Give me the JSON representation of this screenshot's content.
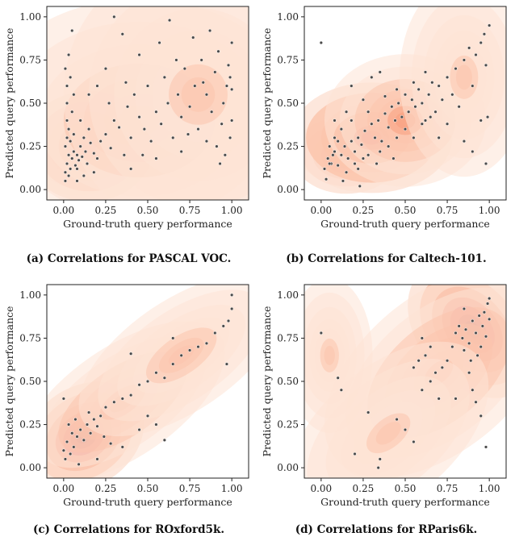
{
  "colors": {
    "density_stops": [
      "#fde3d6",
      "#fbc5ad",
      "#f89f7d",
      "#f26d4f",
      "#de3a2d",
      "#b9161d",
      "#8a0a14"
    ],
    "marker": "#4a4a4a",
    "marker_edge": "#ffffff"
  },
  "chart_data": [
    {
      "type": "scatter",
      "id": "a",
      "caption": "(a) Correlations for PASCAL VOC.",
      "xlabel": "Ground-truth query performance",
      "ylabel": "Predicted query performance",
      "xticks": [
        "0.00",
        "0.25",
        "0.50",
        "0.75",
        "1.00"
      ],
      "yticks": [
        "0.00",
        "0.25",
        "0.50",
        "0.75",
        "1.00"
      ],
      "xlim": [
        -0.1,
        1.1
      ],
      "ylim": [
        -0.06,
        1.06
      ],
      "density": [
        {
          "cx": 0.08,
          "cy": 0.22,
          "sx": 0.1,
          "sy": 0.08,
          "a": 1.0
        },
        {
          "cx": 0.15,
          "cy": 0.25,
          "sx": 0.12,
          "sy": 0.1,
          "a": 0.55
        },
        {
          "cx": 0.45,
          "cy": 0.4,
          "sx": 0.3,
          "sy": 0.22,
          "a": 0.18
        },
        {
          "cx": 0.8,
          "cy": 0.55,
          "sx": 0.25,
          "sy": 0.25,
          "a": 0.12
        }
      ],
      "points": [
        [
          0.01,
          0.1
        ],
        [
          0.02,
          0.15
        ],
        [
          0.03,
          0.2
        ],
        [
          0.01,
          0.25
        ],
        [
          0.02,
          0.3
        ],
        [
          0.04,
          0.12
        ],
        [
          0.05,
          0.18
        ],
        [
          0.03,
          0.35
        ],
        [
          0.02,
          0.4
        ],
        [
          0.01,
          0.05
        ],
        [
          0.06,
          0.22
        ],
        [
          0.07,
          0.14
        ],
        [
          0.04,
          0.28
        ],
        [
          0.08,
          0.2
        ],
        [
          0.05,
          0.45
        ],
        [
          0.02,
          0.5
        ],
        [
          0.09,
          0.17
        ],
        [
          0.1,
          0.25
        ],
        [
          0.11,
          0.19
        ],
        [
          0.12,
          0.3
        ],
        [
          0.13,
          0.22
        ],
        [
          0.14,
          0.15
        ],
        [
          0.15,
          0.35
        ],
        [
          0.16,
          0.27
        ],
        [
          0.18,
          0.21
        ],
        [
          0.2,
          0.18
        ],
        [
          0.03,
          0.08
        ],
        [
          0.06,
          0.32
        ],
        [
          0.08,
          0.12
        ],
        [
          0.1,
          0.4
        ],
        [
          0.02,
          0.6
        ],
        [
          0.04,
          0.65
        ],
        [
          0.06,
          0.55
        ],
        [
          0.01,
          0.7
        ],
        [
          0.03,
          0.78
        ],
        [
          0.05,
          0.92
        ],
        [
          0.22,
          0.28
        ],
        [
          0.25,
          0.32
        ],
        [
          0.28,
          0.24
        ],
        [
          0.3,
          0.4
        ],
        [
          0.33,
          0.36
        ],
        [
          0.36,
          0.2
        ],
        [
          0.38,
          0.48
        ],
        [
          0.4,
          0.3
        ],
        [
          0.42,
          0.55
        ],
        [
          0.45,
          0.42
        ],
        [
          0.48,
          0.35
        ],
        [
          0.5,
          0.6
        ],
        [
          0.52,
          0.28
        ],
        [
          0.55,
          0.45
        ],
        [
          0.58,
          0.38
        ],
        [
          0.6,
          0.65
        ],
        [
          0.62,
          0.5
        ],
        [
          0.65,
          0.3
        ],
        [
          0.68,
          0.55
        ],
        [
          0.7,
          0.42
        ],
        [
          0.72,
          0.7
        ],
        [
          0.75,
          0.48
        ],
        [
          0.78,
          0.6
        ],
        [
          0.8,
          0.35
        ],
        [
          0.82,
          0.75
        ],
        [
          0.85,
          0.55
        ],
        [
          0.88,
          0.45
        ],
        [
          0.9,
          0.68
        ],
        [
          0.92,
          0.8
        ],
        [
          0.95,
          0.5
        ],
        [
          0.97,
          0.6
        ],
        [
          0.98,
          0.72
        ],
        [
          1.0,
          0.85
        ],
        [
          1.0,
          0.4
        ],
        [
          0.99,
          0.3
        ],
        [
          0.96,
          0.2
        ],
        [
          0.93,
          0.15
        ],
        [
          0.87,
          0.92
        ],
        [
          0.77,
          0.88
        ],
        [
          0.57,
          0.85
        ],
        [
          0.3,
          1.0
        ],
        [
          0.35,
          0.9
        ],
        [
          0.63,
          0.98
        ],
        [
          0.2,
          0.6
        ],
        [
          0.15,
          0.55
        ],
        [
          0.25,
          0.7
        ],
        [
          0.45,
          0.78
        ],
        [
          0.55,
          0.18
        ],
        [
          0.7,
          0.22
        ],
        [
          0.85,
          0.28
        ],
        [
          0.4,
          0.12
        ],
        [
          0.12,
          0.08
        ],
        [
          0.08,
          0.05
        ],
        [
          0.18,
          0.1
        ],
        [
          0.27,
          0.5
        ],
        [
          0.37,
          0.62
        ],
        [
          0.47,
          0.2
        ],
        [
          0.67,
          0.75
        ],
        [
          0.74,
          0.32
        ],
        [
          0.94,
          0.38
        ],
        [
          1.0,
          0.58
        ],
        [
          0.99,
          0.65
        ],
        [
          0.91,
          0.25
        ],
        [
          0.83,
          0.62
        ]
      ]
    },
    {
      "type": "scatter",
      "id": "b",
      "caption": "(b) Correlations for Caltech-101.",
      "xlabel": "Ground-truth query performance",
      "ylabel": "Predicted query performance",
      "xticks": [
        "0.00",
        "0.25",
        "0.50",
        "0.75",
        "1.00"
      ],
      "yticks": [
        "0.00",
        "0.25",
        "0.50",
        "0.75",
        "1.00"
      ],
      "xlim": [
        -0.1,
        1.1
      ],
      "ylim": [
        -0.06,
        1.06
      ],
      "density": [
        {
          "cx": 0.15,
          "cy": 0.2,
          "sx": 0.1,
          "sy": 0.07,
          "a": 1.0
        },
        {
          "cx": 0.3,
          "cy": 0.3,
          "sx": 0.15,
          "sy": 0.1,
          "a": 0.6
        },
        {
          "cx": 0.5,
          "cy": 0.4,
          "sx": 0.15,
          "sy": 0.12,
          "a": 0.3
        },
        {
          "cx": 0.85,
          "cy": 0.65,
          "sx": 0.12,
          "sy": 0.18,
          "a": 0.12
        }
      ],
      "points": [
        [
          0.02,
          0.12
        ],
        [
          0.04,
          0.18
        ],
        [
          0.06,
          0.15
        ],
        [
          0.08,
          0.22
        ],
        [
          0.1,
          0.14
        ],
        [
          0.12,
          0.2
        ],
        [
          0.14,
          0.25
        ],
        [
          0.16,
          0.18
        ],
        [
          0.18,
          0.28
        ],
        [
          0.2,
          0.22
        ],
        [
          0.22,
          0.3
        ],
        [
          0.24,
          0.26
        ],
        [
          0.26,
          0.34
        ],
        [
          0.28,
          0.2
        ],
        [
          0.3,
          0.38
        ],
        [
          0.32,
          0.3
        ],
        [
          0.34,
          0.4
        ],
        [
          0.36,
          0.28
        ],
        [
          0.38,
          0.44
        ],
        [
          0.4,
          0.36
        ],
        [
          0.42,
          0.48
        ],
        [
          0.44,
          0.4
        ],
        [
          0.46,
          0.5
        ],
        [
          0.48,
          0.42
        ],
        [
          0.5,
          0.55
        ],
        [
          0.52,
          0.45
        ],
        [
          0.54,
          0.52
        ],
        [
          0.56,
          0.48
        ],
        [
          0.58,
          0.58
        ],
        [
          0.6,
          0.5
        ],
        [
          0.62,
          0.4
        ],
        [
          0.64,
          0.55
        ],
        [
          0.66,
          0.62
        ],
        [
          0.68,
          0.45
        ],
        [
          0.7,
          0.6
        ],
        [
          0.72,
          0.52
        ],
        [
          0.1,
          0.28
        ],
        [
          0.15,
          0.1
        ],
        [
          0.2,
          0.15
        ],
        [
          0.25,
          0.18
        ],
        [
          0.05,
          0.25
        ],
        [
          0.08,
          0.3
        ],
        [
          0.12,
          0.35
        ],
        [
          0.18,
          0.4
        ],
        [
          0.22,
          0.12
        ],
        [
          0.28,
          0.45
        ],
        [
          0.35,
          0.22
        ],
        [
          0.4,
          0.25
        ],
        [
          0.45,
          0.3
        ],
        [
          0.5,
          0.35
        ],
        [
          0.55,
          0.3
        ],
        [
          0.6,
          0.38
        ],
        [
          0.65,
          0.42
        ],
        [
          0.03,
          0.06
        ],
        [
          0.13,
          0.05
        ],
        [
          0.23,
          0.02
        ],
        [
          0.33,
          0.15
        ],
        [
          0.43,
          0.18
        ],
        [
          0.75,
          0.65
        ],
        [
          0.8,
          0.7
        ],
        [
          0.85,
          0.75
        ],
        [
          0.88,
          0.82
        ],
        [
          0.92,
          0.78
        ],
        [
          0.95,
          0.85
        ],
        [
          0.97,
          0.9
        ],
        [
          1.0,
          0.95
        ],
        [
          0.98,
          0.72
        ],
        [
          0.9,
          0.6
        ],
        [
          0.95,
          0.4
        ],
        [
          0.99,
          0.42
        ],
        [
          0.98,
          0.15
        ],
        [
          0.9,
          0.22
        ],
        [
          0.85,
          0.28
        ],
        [
          0.0,
          0.85
        ],
        [
          0.18,
          0.6
        ],
        [
          0.3,
          0.65
        ],
        [
          0.35,
          0.68
        ],
        [
          0.45,
          0.58
        ],
        [
          0.7,
          0.3
        ],
        [
          0.75,
          0.38
        ],
        [
          0.25,
          0.52
        ],
        [
          0.38,
          0.54
        ],
        [
          0.15,
          0.45
        ],
        [
          0.08,
          0.4
        ],
        [
          0.55,
          0.62
        ],
        [
          0.62,
          0.68
        ],
        [
          0.78,
          0.55
        ],
        [
          0.82,
          0.48
        ],
        [
          0.05,
          0.15
        ],
        [
          0.07,
          0.2
        ]
      ]
    },
    {
      "type": "scatter",
      "id": "c",
      "caption": "(c) Correlations for ROxford5k.",
      "xlabel": "Ground-truth query performance",
      "ylabel": "Predicted query performance",
      "xticks": [
        "0.00",
        "0.25",
        "0.50",
        "0.75",
        "1.00"
      ],
      "yticks": [
        "0.00",
        "0.25",
        "0.50",
        "0.75",
        "1.00"
      ],
      "xlim": [
        -0.1,
        1.1
      ],
      "ylim": [
        -0.06,
        1.06
      ],
      "density": [
        {
          "cx": 0.12,
          "cy": 0.18,
          "sx": 0.12,
          "sy": 0.09,
          "a": 1.0,
          "rot": -0.6
        },
        {
          "cx": 0.35,
          "cy": 0.38,
          "sx": 0.22,
          "sy": 0.1,
          "a": 0.35,
          "rot": -0.6
        },
        {
          "cx": 0.7,
          "cy": 0.65,
          "sx": 0.22,
          "sy": 0.1,
          "a": 0.15,
          "rot": -0.6
        }
      ],
      "points": [
        [
          0.0,
          0.1
        ],
        [
          0.02,
          0.15
        ],
        [
          0.04,
          0.08
        ],
        [
          0.05,
          0.2
        ],
        [
          0.06,
          0.12
        ],
        [
          0.08,
          0.18
        ],
        [
          0.1,
          0.22
        ],
        [
          0.12,
          0.16
        ],
        [
          0.14,
          0.25
        ],
        [
          0.16,
          0.2
        ],
        [
          0.18,
          0.28
        ],
        [
          0.2,
          0.24
        ],
        [
          0.22,
          0.3
        ],
        [
          0.24,
          0.18
        ],
        [
          0.01,
          0.05
        ],
        [
          0.03,
          0.25
        ],
        [
          0.07,
          0.28
        ],
        [
          0.09,
          0.02
        ],
        [
          0.15,
          0.32
        ],
        [
          0.25,
          0.35
        ],
        [
          0.3,
          0.38
        ],
        [
          0.35,
          0.4
        ],
        [
          0.4,
          0.42
        ],
        [
          0.45,
          0.48
        ],
        [
          0.5,
          0.5
        ],
        [
          0.55,
          0.55
        ],
        [
          0.6,
          0.52
        ],
        [
          0.65,
          0.6
        ],
        [
          0.7,
          0.65
        ],
        [
          0.75,
          0.68
        ],
        [
          0.8,
          0.7
        ],
        [
          0.85,
          0.72
        ],
        [
          0.9,
          0.78
        ],
        [
          0.95,
          0.82
        ],
        [
          0.97,
          0.6
        ],
        [
          1.0,
          0.92
        ],
        [
          1.0,
          1.0
        ],
        [
          0.98,
          0.85
        ],
        [
          0.5,
          0.3
        ],
        [
          0.55,
          0.25
        ],
        [
          0.6,
          0.16
        ],
        [
          0.45,
          0.22
        ],
        [
          0.4,
          0.66
        ],
        [
          0.65,
          0.75
        ],
        [
          0.35,
          0.12
        ],
        [
          0.28,
          0.14
        ],
        [
          0.2,
          0.05
        ],
        [
          0.0,
          0.4
        ]
      ]
    },
    {
      "type": "scatter",
      "id": "d",
      "caption": "(d) Correlations for RParis6k.",
      "xlabel": "Ground-truth query performance",
      "ylabel": "Predicted query performance",
      "xticks": [
        "0.00",
        "0.25",
        "0.50",
        "0.75",
        "1.00"
      ],
      "yticks": [
        "0.00",
        "0.25",
        "0.50",
        "0.75",
        "1.00"
      ],
      "xlim": [
        -0.1,
        1.1
      ],
      "ylim": [
        -0.06,
        1.06
      ],
      "density": [
        {
          "cx": 0.9,
          "cy": 0.8,
          "sx": 0.1,
          "sy": 0.14,
          "a": 1.0,
          "rot": -0.7
        },
        {
          "cx": 0.7,
          "cy": 0.55,
          "sx": 0.25,
          "sy": 0.14,
          "a": 0.25,
          "rot": -0.7
        },
        {
          "cx": 0.4,
          "cy": 0.2,
          "sx": 0.22,
          "sy": 0.12,
          "a": 0.12,
          "rot": -0.7
        },
        {
          "cx": 0.05,
          "cy": 0.65,
          "sx": 0.08,
          "sy": 0.14,
          "a": 0.1
        }
      ],
      "points": [
        [
          0.8,
          0.78
        ],
        [
          0.82,
          0.82
        ],
        [
          0.84,
          0.75
        ],
        [
          0.86,
          0.8
        ],
        [
          0.88,
          0.72
        ],
        [
          0.9,
          0.85
        ],
        [
          0.92,
          0.78
        ],
        [
          0.94,
          0.88
        ],
        [
          0.95,
          0.7
        ],
        [
          0.96,
          0.82
        ],
        [
          0.97,
          0.9
        ],
        [
          0.98,
          0.76
        ],
        [
          0.99,
          0.95
        ],
        [
          1.0,
          0.86
        ],
        [
          1.0,
          0.98
        ],
        [
          0.93,
          0.65
        ],
        [
          0.89,
          0.62
        ],
        [
          0.85,
          0.68
        ],
        [
          0.78,
          0.7
        ],
        [
          0.75,
          0.62
        ],
        [
          0.72,
          0.58
        ],
        [
          0.68,
          0.55
        ],
        [
          0.65,
          0.5
        ],
        [
          0.6,
          0.45
        ],
        [
          0.7,
          0.4
        ],
        [
          0.8,
          0.4
        ],
        [
          0.9,
          0.45
        ],
        [
          0.55,
          0.58
        ],
        [
          0.58,
          0.62
        ],
        [
          0.62,
          0.65
        ],
        [
          0.65,
          0.7
        ],
        [
          0.6,
          0.75
        ],
        [
          0.35,
          0.05
        ],
        [
          0.34,
          0.0
        ],
        [
          0.28,
          0.32
        ],
        [
          0.2,
          0.08
        ],
        [
          0.1,
          0.52
        ],
        [
          0.12,
          0.45
        ],
        [
          0.0,
          0.78
        ],
        [
          0.55,
          0.15
        ],
        [
          0.5,
          0.22
        ],
        [
          0.45,
          0.28
        ],
        [
          0.98,
          0.12
        ],
        [
          0.95,
          0.3
        ],
        [
          0.92,
          0.38
        ],
        [
          0.88,
          0.55
        ],
        [
          0.85,
          0.92
        ]
      ]
    }
  ]
}
